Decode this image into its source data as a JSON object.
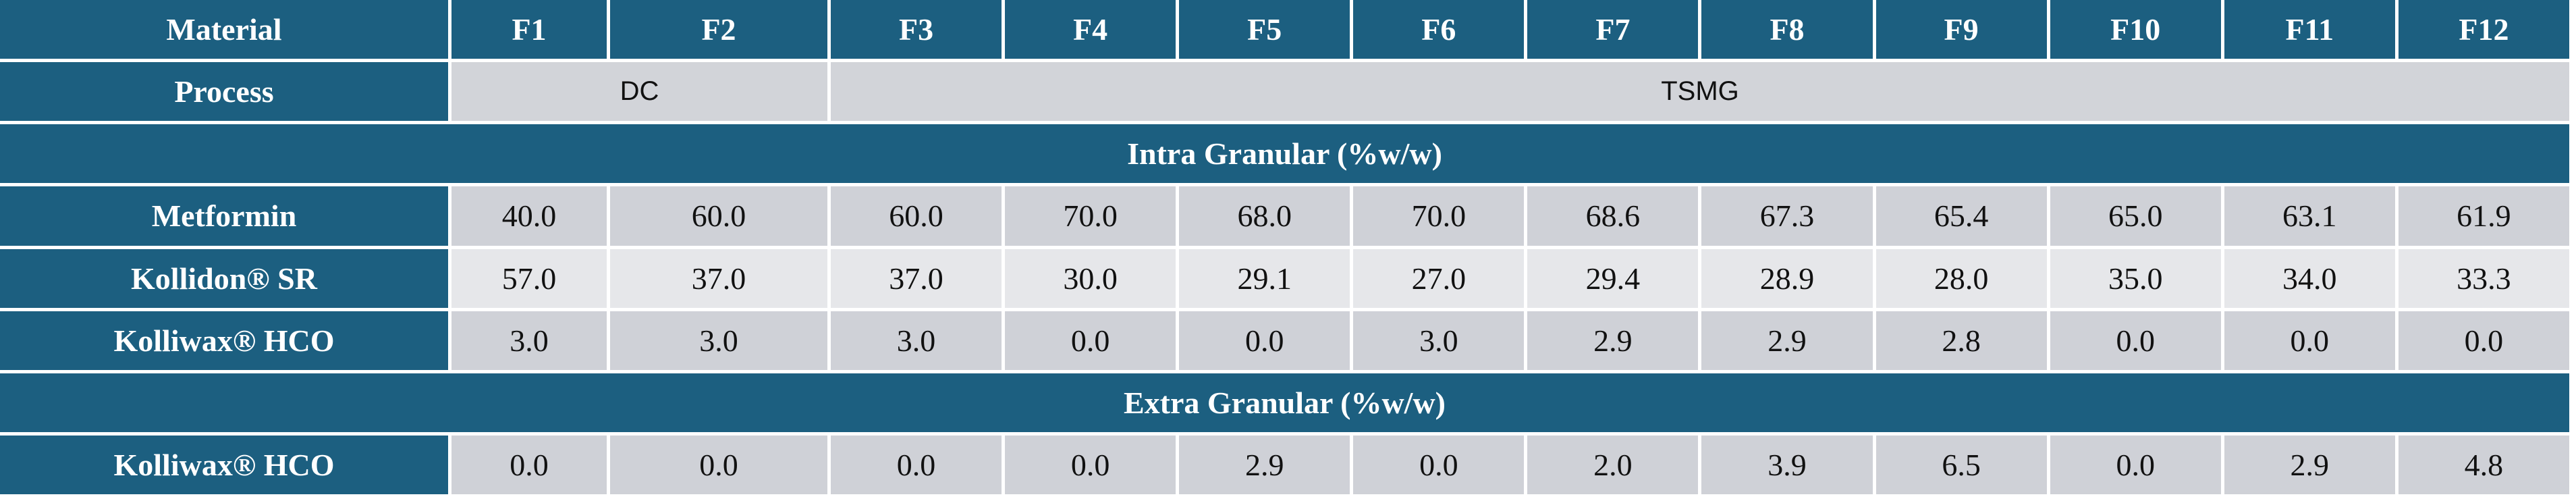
{
  "table": {
    "header": [
      "Material",
      "F1",
      "F2",
      "F3",
      "F4",
      "F5",
      "F6",
      "F7",
      "F8",
      "F9",
      "F10",
      "F11",
      "F12"
    ],
    "process": {
      "label": "Process",
      "groups": [
        "DC",
        "TSMG"
      ]
    },
    "sections": [
      {
        "title": "Intra Granular (%w/w)",
        "rows": [
          {
            "label": "Metformin",
            "values": [
              "40.0",
              "60.0",
              "60.0",
              "70.0",
              "68.0",
              "70.0",
              "68.6",
              "67.3",
              "65.4",
              "65.0",
              "63.1",
              "61.9"
            ]
          },
          {
            "label": "Kollidon® SR",
            "values": [
              "57.0",
              "37.0",
              "37.0",
              "30.0",
              "29.1",
              "27.0",
              "29.4",
              "28.9",
              "28.0",
              "35.0",
              "34.0",
              "33.3"
            ]
          },
          {
            "label": "Kolliwax® HCO",
            "values": [
              "3.0",
              "3.0",
              "3.0",
              "0.0",
              "0.0",
              "3.0",
              "2.9",
              "2.9",
              "2.8",
              "0.0",
              "0.0",
              "0.0"
            ]
          }
        ]
      },
      {
        "title": "Extra Granular (%w/w)",
        "rows": [
          {
            "label": "Kolliwax® HCO",
            "values": [
              "0.0",
              "0.0",
              "0.0",
              "0.0",
              "2.9",
              "0.0",
              "2.0",
              "3.9",
              "6.5",
              "0.0",
              "2.9",
              "4.8"
            ]
          }
        ]
      }
    ]
  }
}
